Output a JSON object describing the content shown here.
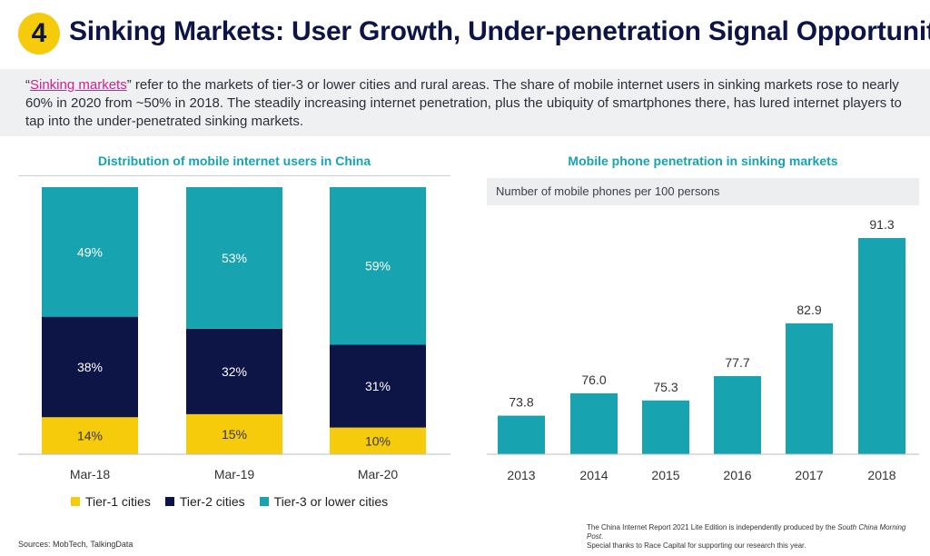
{
  "header": {
    "badge": "4",
    "title": "Sinking Markets: User Growth, Under-penetration Signal Opportunities"
  },
  "intro": {
    "quote_open": "“",
    "highlight": "Sinking markets",
    "text": "” refer to the markets of tier-3 or lower cities and rural areas. The share of mobile internet users in sinking markets rose to nearly 60% in 2020 from ~50% in 2018. The steadily increasing internet penetration, plus the ubiquity of smartphones there, has lured internet players to tap into the under-penetrated sinking markets."
  },
  "colors": {
    "tier1": "#f5cb0b",
    "tier2": "#0d1446",
    "tier3": "#17a3b0",
    "bar": "#17a3b0"
  },
  "chart_data": [
    {
      "type": "bar",
      "stacked": true,
      "title": "Distribution of mobile internet users in China",
      "categories": [
        "Mar-18",
        "Mar-19",
        "Mar-20"
      ],
      "series": [
        {
          "name": "Tier-1 cities",
          "values": [
            14,
            15,
            10
          ],
          "labels": [
            "14%",
            "15%",
            "10%"
          ]
        },
        {
          "name": "Tier-2 cities",
          "values": [
            38,
            32,
            31
          ],
          "labels": [
            "38%",
            "32%",
            "31%"
          ]
        },
        {
          "name": "Tier-3 or lower cities",
          "values": [
            49,
            53,
            59
          ],
          "labels": [
            "49%",
            "53%",
            "59%"
          ]
        }
      ],
      "legend": "bottom"
    },
    {
      "type": "bar",
      "title": "Mobile phone penetration in sinking markets",
      "subtitle": "Number of mobile phones per 100 persons",
      "categories": [
        "2013",
        "2014",
        "2015",
        "2016",
        "2017",
        "2018"
      ],
      "values": [
        73.8,
        76.0,
        75.3,
        77.7,
        82.9,
        91.3
      ],
      "labels": [
        "73.8",
        "76.0",
        "75.3",
        "77.7",
        "82.9",
        "91.3"
      ]
    }
  ],
  "footer": {
    "sources": "Sources: MobTech, TalkingData",
    "credit_line1_pre": "The China Internet Report 2021 Lite Edition is independently produced by the ",
    "credit_line1_em": "South China Morning Post",
    "credit_line1_post": ".",
    "credit_line2": "Special thanks to Race Capital for supporting our research this year."
  }
}
